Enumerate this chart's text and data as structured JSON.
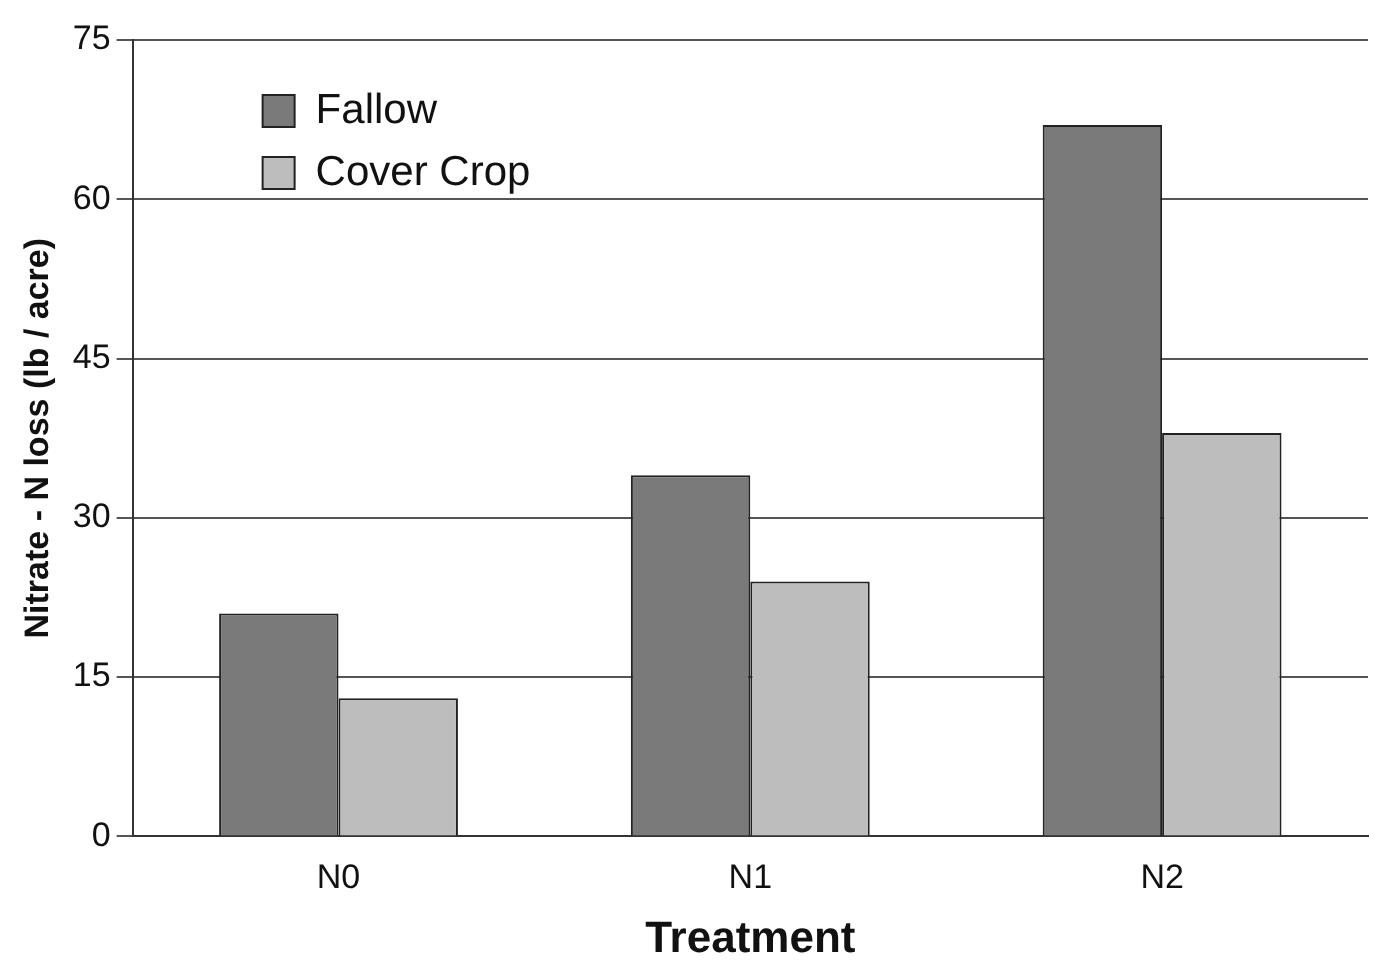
{
  "chart_data": {
    "type": "bar",
    "xlabel": "Treatment",
    "ylabel": "Nitrate - N loss (lb / acre)",
    "categories": [
      "N0",
      "N1",
      "N2"
    ],
    "series": [
      {
        "name": "Fallow",
        "color": "#7a7a7a",
        "values": [
          21,
          34,
          67
        ]
      },
      {
        "name": "Cover Crop",
        "color": "#bdbdbd",
        "values": [
          13,
          24,
          38
        ]
      }
    ],
    "ylim": [
      0,
      75
    ],
    "yticks": [
      0,
      15,
      30,
      45,
      60,
      75
    ],
    "grid": "y",
    "legend": "top left"
  }
}
